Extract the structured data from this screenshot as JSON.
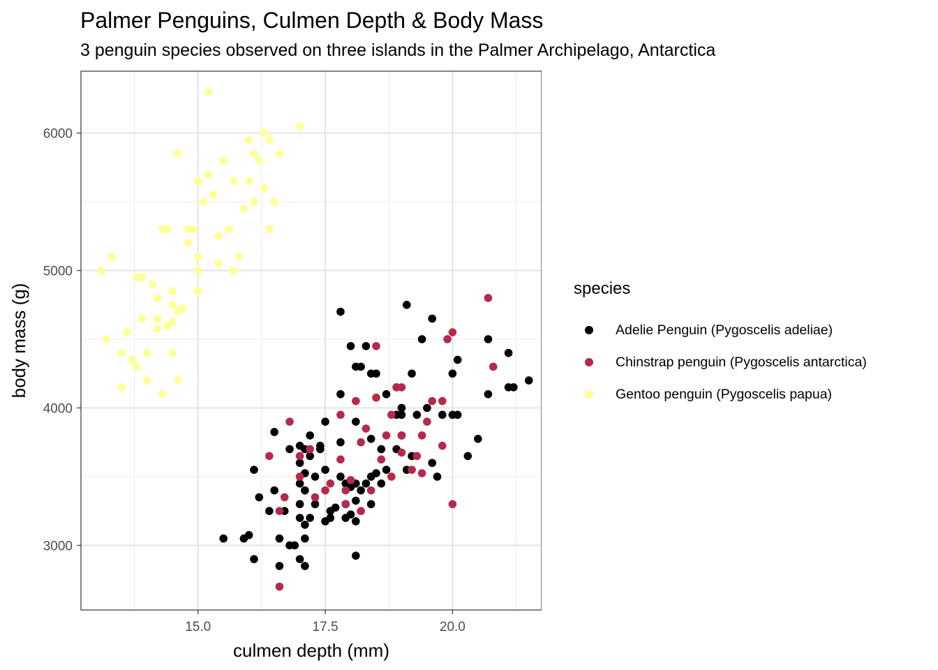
{
  "chart_data": {
    "type": "scatter",
    "title": "Palmer Penguins, Culmen Depth & Body Mass",
    "subtitle": "3 penguin species observed on three islands in the Palmer Archipelago, Antarctica",
    "xlabel": "culmen depth (mm)",
    "ylabel": "body mass (g)",
    "xlim": [
      12.7,
      21.75
    ],
    "ylim": [
      2530,
      6450
    ],
    "x_ticks": [
      15.0,
      17.5,
      20.0
    ],
    "x_tick_labels": [
      "15.0",
      "17.5",
      "20.0"
    ],
    "y_ticks": [
      3000,
      4000,
      5000,
      6000
    ],
    "y_tick_labels": [
      "3000",
      "4000",
      "5000",
      "6000"
    ],
    "grid": true,
    "legend_title": "species",
    "legend_position": "right",
    "series": [
      {
        "name": "Adelie Penguin (Pygoscelis adeliae)",
        "color": "#000000",
        "points": [
          [
            15.5,
            3050
          ],
          [
            15.9,
            3050
          ],
          [
            16.0,
            3075
          ],
          [
            16.1,
            2900
          ],
          [
            16.1,
            3550
          ],
          [
            16.2,
            3350
          ],
          [
            16.4,
            3250
          ],
          [
            16.5,
            3400
          ],
          [
            16.5,
            3825
          ],
          [
            16.6,
            3050
          ],
          [
            16.6,
            2850
          ],
          [
            16.7,
            3250
          ],
          [
            16.8,
            3000
          ],
          [
            16.8,
            3700
          ],
          [
            16.9,
            3000
          ],
          [
            17.0,
            2900
          ],
          [
            17.0,
            3200
          ],
          [
            17.0,
            3300
          ],
          [
            17.0,
            3450
          ],
          [
            17.0,
            3600
          ],
          [
            17.0,
            3725
          ],
          [
            17.1,
            2850
          ],
          [
            17.1,
            3050
          ],
          [
            17.1,
            3150
          ],
          [
            17.1,
            3400
          ],
          [
            17.1,
            3525
          ],
          [
            17.1,
            3700
          ],
          [
            17.2,
            3200
          ],
          [
            17.2,
            3650
          ],
          [
            17.2,
            3800
          ],
          [
            17.3,
            3300
          ],
          [
            17.3,
            3500
          ],
          [
            17.4,
            3700
          ],
          [
            17.4,
            3725
          ],
          [
            17.5,
            3175
          ],
          [
            17.5,
            3550
          ],
          [
            17.5,
            3900
          ],
          [
            17.6,
            3200
          ],
          [
            17.6,
            3250
          ],
          [
            17.7,
            3275
          ],
          [
            17.8,
            3500
          ],
          [
            17.8,
            3750
          ],
          [
            17.8,
            4700
          ],
          [
            17.9,
            3200
          ],
          [
            17.9,
            3300
          ],
          [
            17.9,
            3450
          ],
          [
            18.0,
            3225
          ],
          [
            18.0,
            3425
          ],
          [
            18.0,
            3450
          ],
          [
            18.1,
            2925
          ],
          [
            18.1,
            3175
          ],
          [
            18.1,
            3325
          ],
          [
            18.1,
            3450
          ],
          [
            18.1,
            3900
          ],
          [
            18.2,
            3400
          ],
          [
            18.3,
            3450
          ],
          [
            18.4,
            3300
          ],
          [
            18.4,
            3500
          ],
          [
            18.4,
            3775
          ],
          [
            18.5,
            3525
          ],
          [
            18.5,
            4250
          ],
          [
            18.6,
            3450
          ],
          [
            18.7,
            3550
          ],
          [
            18.9,
            3700
          ],
          [
            18.9,
            3950
          ],
          [
            19.0,
            3800
          ],
          [
            19.0,
            4000
          ],
          [
            19.1,
            4750
          ],
          [
            19.1,
            3550
          ],
          [
            19.2,
            3650
          ],
          [
            19.3,
            3950
          ],
          [
            19.4,
            4500
          ],
          [
            19.5,
            4000
          ],
          [
            19.6,
            4650
          ],
          [
            19.7,
            3500
          ],
          [
            19.8,
            3950
          ],
          [
            20.0,
            4250
          ],
          [
            20.0,
            3950
          ],
          [
            20.3,
            3650
          ],
          [
            20.5,
            3775
          ],
          [
            20.7,
            4100
          ],
          [
            20.7,
            4500
          ],
          [
            21.1,
            4400
          ],
          [
            21.1,
            4150
          ],
          [
            21.2,
            4150
          ],
          [
            21.5,
            4200
          ],
          [
            17.8,
            4100
          ],
          [
            18.0,
            4450
          ],
          [
            18.1,
            4300
          ],
          [
            18.2,
            4300
          ],
          [
            18.3,
            4450
          ],
          [
            18.4,
            4250
          ],
          [
            18.6,
            3700
          ],
          [
            18.7,
            4100
          ],
          [
            18.9,
            4150
          ],
          [
            19.0,
            3950
          ],
          [
            19.2,
            4250
          ],
          [
            19.6,
            3600
          ],
          [
            20.1,
            3950
          ],
          [
            20.1,
            4350
          ]
        ]
      },
      {
        "name": "Chinstrap penguin (Pygoscelis antarctica)",
        "color": "#b52a4a",
        "points": [
          [
            16.4,
            3650
          ],
          [
            16.6,
            2700
          ],
          [
            16.6,
            3250
          ],
          [
            16.7,
            3350
          ],
          [
            16.8,
            3900
          ],
          [
            17.0,
            3500
          ],
          [
            17.0,
            3650
          ],
          [
            17.2,
            3700
          ],
          [
            17.3,
            3350
          ],
          [
            17.5,
            3400
          ],
          [
            17.6,
            3450
          ],
          [
            17.8,
            3625
          ],
          [
            17.8,
            3950
          ],
          [
            17.9,
            3300
          ],
          [
            17.9,
            3400
          ],
          [
            18.0,
            3475
          ],
          [
            18.1,
            4050
          ],
          [
            18.2,
            3250
          ],
          [
            18.2,
            3750
          ],
          [
            18.3,
            3850
          ],
          [
            18.4,
            3400
          ],
          [
            18.5,
            4075
          ],
          [
            18.5,
            4450
          ],
          [
            18.6,
            3625
          ],
          [
            18.7,
            3800
          ],
          [
            18.8,
            3500
          ],
          [
            18.8,
            3950
          ],
          [
            18.9,
            4150
          ],
          [
            19.0,
            3675
          ],
          [
            19.0,
            4150
          ],
          [
            19.0,
            3800
          ],
          [
            19.2,
            3550
          ],
          [
            19.3,
            3650
          ],
          [
            19.4,
            3525
          ],
          [
            19.4,
            3800
          ],
          [
            19.5,
            3900
          ],
          [
            19.6,
            4050
          ],
          [
            19.8,
            3725
          ],
          [
            19.9,
            4500
          ],
          [
            20.0,
            3300
          ],
          [
            20.0,
            4550
          ],
          [
            20.7,
            4800
          ],
          [
            20.8,
            4300
          ],
          [
            19.8,
            4050
          ]
        ]
      },
      {
        "name": "Gentoo penguin (Pygoscelis papua)",
        "color": "#ffff99",
        "points": [
          [
            13.1,
            5000
          ],
          [
            13.2,
            4500
          ],
          [
            13.3,
            5100
          ],
          [
            13.5,
            4400
          ],
          [
            13.6,
            4550
          ],
          [
            13.7,
            4350
          ],
          [
            13.8,
            4300
          ],
          [
            13.9,
            4950
          ],
          [
            13.9,
            4650
          ],
          [
            14.0,
            4200
          ],
          [
            14.0,
            4400
          ],
          [
            14.1,
            4900
          ],
          [
            14.2,
            4575
          ],
          [
            14.2,
            4800
          ],
          [
            14.3,
            5300
          ],
          [
            14.4,
            4600
          ],
          [
            14.4,
            5300
          ],
          [
            14.5,
            4625
          ],
          [
            14.5,
            4750
          ],
          [
            14.5,
            4850
          ],
          [
            14.6,
            5850
          ],
          [
            14.6,
            4700
          ],
          [
            14.7,
            4725
          ],
          [
            14.8,
            5200
          ],
          [
            14.9,
            5300
          ],
          [
            15.0,
            4850
          ],
          [
            15.0,
            5000
          ],
          [
            15.0,
            5650
          ],
          [
            15.1,
            5500
          ],
          [
            15.2,
            5700
          ],
          [
            15.2,
            6300
          ],
          [
            15.3,
            5550
          ],
          [
            15.4,
            5050
          ],
          [
            15.5,
            5800
          ],
          [
            15.6,
            5300
          ],
          [
            15.7,
            5000
          ],
          [
            15.8,
            5100
          ],
          [
            15.9,
            5450
          ],
          [
            16.0,
            5650
          ],
          [
            16.1,
            5500
          ],
          [
            16.2,
            5800
          ],
          [
            16.3,
            5600
          ],
          [
            16.4,
            5300
          ],
          [
            16.5,
            5500
          ],
          [
            16.6,
            5850
          ],
          [
            17.0,
            6050
          ],
          [
            13.5,
            4150
          ],
          [
            14.3,
            4100
          ],
          [
            14.6,
            4200
          ],
          [
            15.7,
            5650
          ],
          [
            15.0,
            5100
          ],
          [
            14.2,
            4650
          ],
          [
            14.5,
            4400
          ],
          [
            13.8,
            4950
          ],
          [
            16.0,
            5950
          ],
          [
            16.3,
            6000
          ],
          [
            16.4,
            5950
          ],
          [
            16.1,
            5850
          ],
          [
            15.4,
            5250
          ],
          [
            14.8,
            5300
          ]
        ]
      }
    ]
  },
  "legend": {
    "title": "species",
    "items": [
      {
        "label": "Adelie Penguin (Pygoscelis adeliae)",
        "color": "#000000"
      },
      {
        "label": "Chinstrap penguin (Pygoscelis antarctica)",
        "color": "#b52a4a"
      },
      {
        "label": "Gentoo penguin (Pygoscelis papua)",
        "color": "#ffff99"
      }
    ]
  }
}
